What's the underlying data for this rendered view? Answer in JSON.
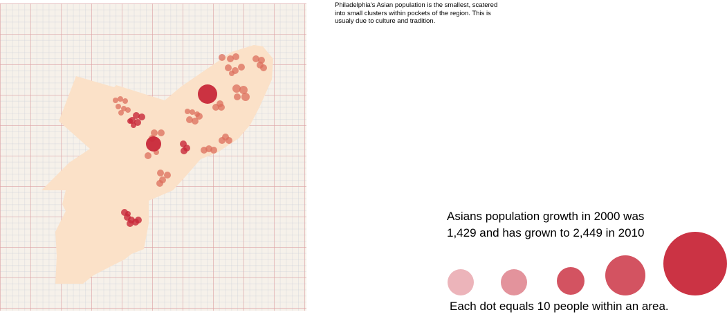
{
  "caption": "Philadelphia's Asian population is the smallest, scatered into small clusters within pockets of the region. This is usualy due to culture and tradition.",
  "growth": {
    "line1": "Asians population growth in 2000 was",
    "line2": "1,429 and has grown to 2,449 in 2010"
  },
  "legend": {
    "note": "Each dot equals 10 people within an area.",
    "dots": [
      {
        "opacity": 0.35
      },
      {
        "opacity": 0.5
      },
      {
        "opacity": 0.8
      },
      {
        "opacity": 0.8
      },
      {
        "opacity": 0.95
      }
    ]
  },
  "colors": {
    "region_fill": "#fbe1c8",
    "dot": "#c8283a",
    "cluster_dot": "#dc6e5c",
    "paper": "#f6f1ea",
    "grid_major": "#e4a0a0"
  }
}
